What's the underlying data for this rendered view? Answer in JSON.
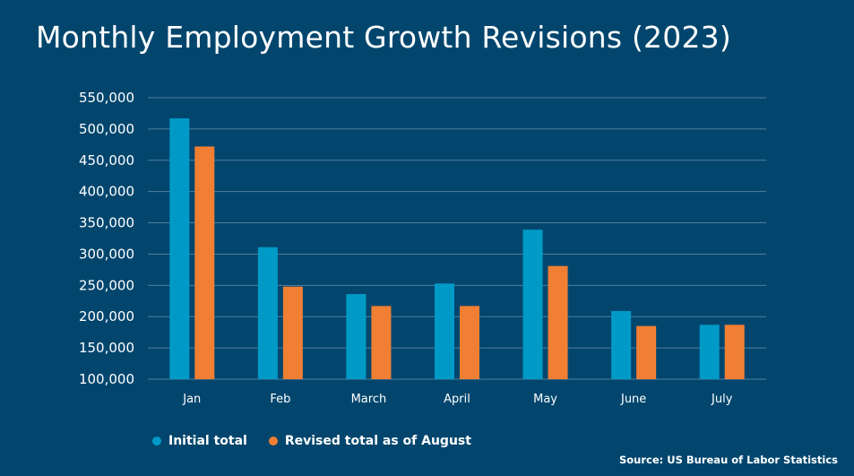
{
  "chart_data": {
    "type": "bar",
    "title": "Monthly Employment Growth Revisions (2023)",
    "categories": [
      "Jan",
      "Feb",
      "March",
      "April",
      "May",
      "June",
      "July"
    ],
    "series": [
      {
        "name": "Initial total",
        "color": "#009ac7",
        "values": [
          517000,
          311000,
          236000,
          253000,
          339000,
          209000,
          187000
        ]
      },
      {
        "name": "Revised total as of August",
        "color": "#f07f33",
        "values": [
          472000,
          248000,
          217000,
          217000,
          281000,
          185000,
          187000
        ]
      }
    ],
    "ylim": [
      100000,
      550000
    ],
    "yticks": [
      "100,000",
      "150,000",
      "200,000",
      "250,000",
      "300,000",
      "350,000",
      "400,000",
      "450,000",
      "500,000",
      "550,000"
    ],
    "grid": true,
    "legend": "bottom-left",
    "source": "Source: US Bureau of Labor Statistics"
  }
}
